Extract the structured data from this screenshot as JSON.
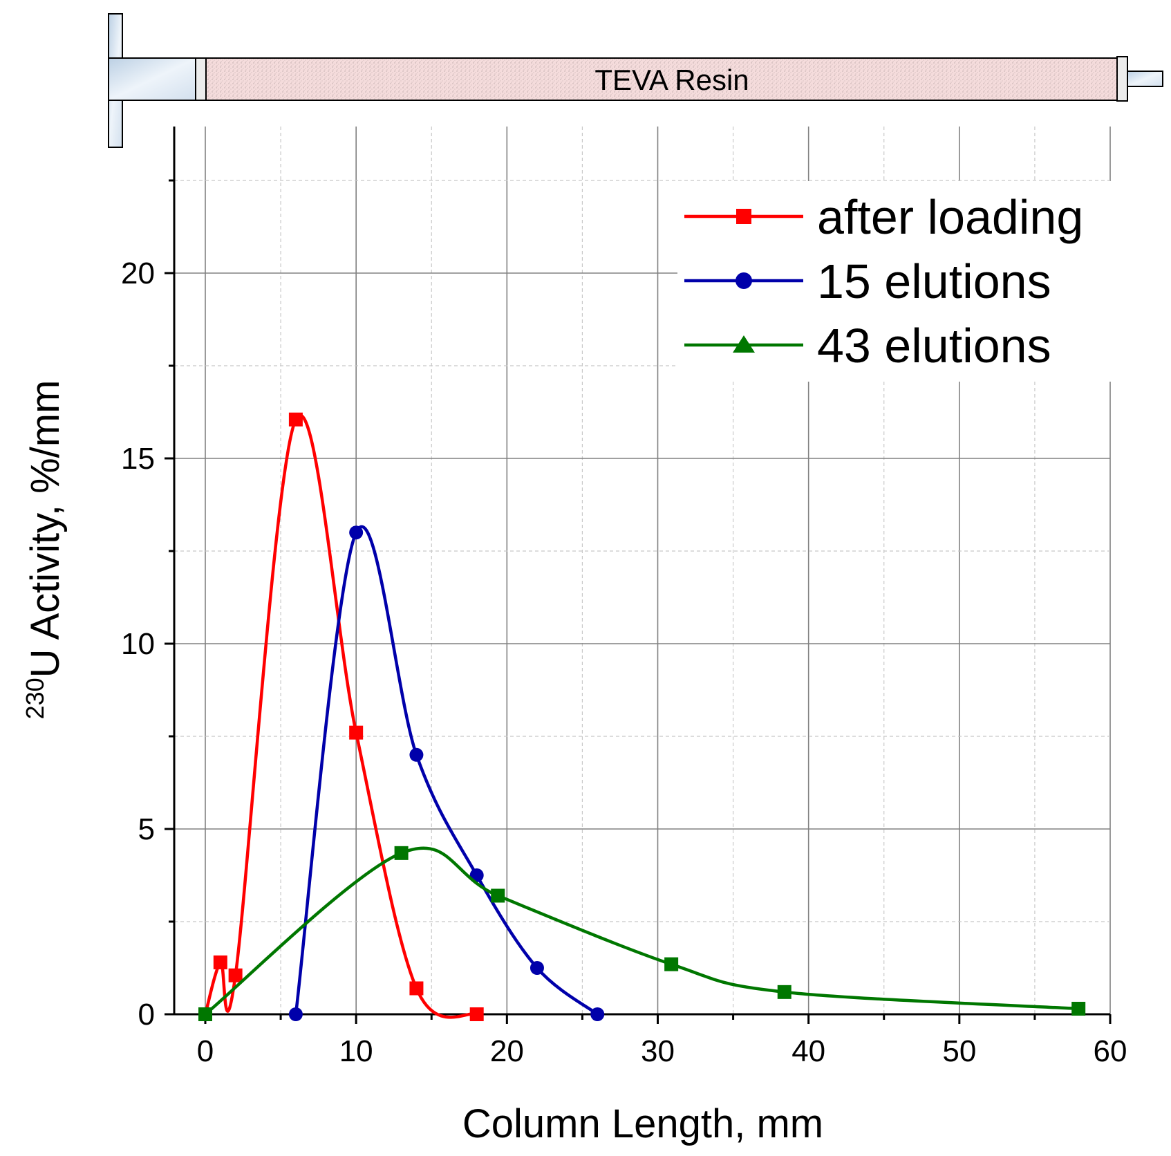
{
  "chart_data": {
    "type": "line",
    "xlabel": "Column Length, mm",
    "ylabel": {
      "superscript": "230",
      "text": "U Activity, %/mm"
    },
    "xlim": [
      -2,
      60
    ],
    "ylim": [
      0,
      24
    ],
    "x_ticks": [
      0,
      10,
      20,
      30,
      40,
      50,
      60
    ],
    "y_ticks": [
      0,
      5,
      10,
      15,
      20
    ],
    "grid": true,
    "legend_position": "top-right",
    "column_label": "TEVA Resin",
    "series": [
      {
        "name": "after loading",
        "color": "#ff0000",
        "marker": "square",
        "points": [
          [
            0,
            0
          ],
          [
            1,
            1.4
          ],
          [
            2,
            1.05
          ],
          [
            6,
            16.05
          ],
          [
            10,
            7.6
          ],
          [
            14,
            0.7
          ],
          [
            18,
            0.0
          ]
        ]
      },
      {
        "name": "15 elutions",
        "color": "#0000aa",
        "marker": "circle",
        "points": [
          [
            6,
            0
          ],
          [
            10,
            13.0
          ],
          [
            14,
            7.0
          ],
          [
            18,
            3.75
          ],
          [
            22,
            1.25
          ],
          [
            26,
            0
          ]
        ]
      },
      {
        "name": "43 elutions",
        "color": "#007700",
        "marker": "triangle",
        "points": [
          [
            0,
            0
          ],
          [
            13,
            4.35
          ],
          [
            19.4,
            3.2
          ],
          [
            30.9,
            1.35
          ],
          [
            38.4,
            0.6
          ],
          [
            57.9,
            0.15
          ]
        ]
      }
    ]
  }
}
